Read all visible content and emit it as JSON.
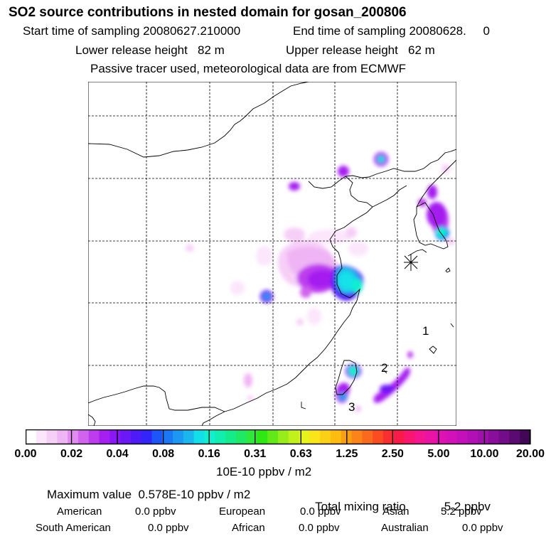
{
  "header": {
    "title": "SO2 source contributions in nested domain for gosan_200806",
    "start_sampling": "Start time of sampling 20080627.210000",
    "end_sampling": "End time of sampling 20080628.     0",
    "lower_release": "Lower release height   82 m",
    "upper_release": "Upper release height   62 m",
    "tracer_note": "Passive tracer used, meteorological data are from ECMWF"
  },
  "map": {
    "site_marker": "station-asterisk-icon",
    "point_labels": [
      "1",
      "2",
      "3"
    ]
  },
  "colorbar": {
    "ticks": [
      "0.00",
      "0.02",
      "0.04",
      "0.08",
      "0.16",
      "0.31",
      "0.63",
      "1.25",
      "2.50",
      "5.00",
      "10.00",
      "20.00"
    ],
    "unit": "10E-10 ppbv / m2",
    "colors": [
      "#ffffff",
      "#fbe6fb",
      "#f6cff7",
      "#efb4f4",
      "#e18bf0",
      "#d064ee",
      "#bd3cee",
      "#a51ff0",
      "#8a18f4",
      "#6c18f6",
      "#4e1af8",
      "#3325fa",
      "#1c55f8",
      "#1a78f5",
      "#1a98f2",
      "#1ab7ee",
      "#12e0e8",
      "#10f0d0",
      "#10eeb0",
      "#14ec8c",
      "#1ee864",
      "#30e83c",
      "#2ee814",
      "#62ea18",
      "#98ec1a",
      "#c2f01a",
      "#e6f41c",
      "#fae41a",
      "#fcd014",
      "#fcbc10",
      "#f8a010",
      "#fa8418",
      "#fa6a1c",
      "#fa4c20",
      "#f82e30",
      "#f81a48",
      "#f81670",
      "#f41690",
      "#ea14a4",
      "#de12b0",
      "#d212b8",
      "#c410b8",
      "#b210b4",
      "#a010aa",
      "#8a0e9c",
      "#720c88",
      "#5a0a70",
      "#420858"
    ]
  },
  "summary": {
    "max_value": "Maximum value  0.578E-10 ppbv / m2",
    "total_label": "Total mixing ratio",
    "total_value": "5.2 ppbv",
    "regions": [
      {
        "name": "American",
        "value": "0.0 ppbv"
      },
      {
        "name": "European",
        "value": "0.0 ppbv"
      },
      {
        "name": "Asian",
        "value": "5.2 ppbv"
      },
      {
        "name": "South American",
        "value": "0.0 ppbv"
      },
      {
        "name": "African",
        "value": "0.0 ppbv"
      },
      {
        "name": "Australian",
        "value": "0.0 ppbv"
      }
    ]
  }
}
